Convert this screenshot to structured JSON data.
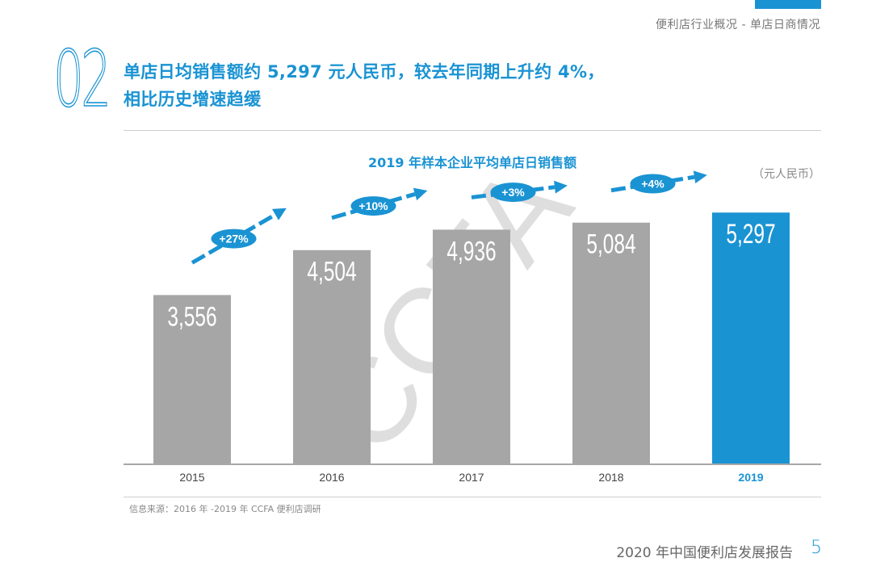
{
  "breadcrumb": "便利店行业概况 - 单店日商情况",
  "section_number": "02",
  "headline": {
    "line1": "单店日均销售额约 5,297 元人民币，较去年同期上升约 4%，",
    "line2": "相比历史增速趋缓"
  },
  "watermark": "CCFA",
  "source": "信息来源：2016 年 -2019 年 CCFA 便利店调研",
  "footer": {
    "title": "2020 年中国便利店发展报告",
    "page": "5"
  },
  "colors": {
    "accent": "#1a93d3",
    "bar_default": "#a6a6a6",
    "bar_highlight": "#1a93d3"
  },
  "chart_data": {
    "type": "bar",
    "title": "2019 年样本企业平均单店日销售额",
    "unit": "（元人民币）",
    "categories": [
      "2015",
      "2016",
      "2017",
      "2018",
      "2019"
    ],
    "values": [
      3556,
      4504,
      4936,
      5084,
      5297
    ],
    "value_labels": [
      "3,556",
      "4,504",
      "4,936",
      "5,084",
      "5,297"
    ],
    "highlight": "2019",
    "ylim": [
      0,
      6000
    ],
    "growth": [
      {
        "from": "2015",
        "to": "2016",
        "label": "+27%"
      },
      {
        "from": "2016",
        "to": "2017",
        "label": "+10%"
      },
      {
        "from": "2017",
        "to": "2018",
        "label": "+3%"
      },
      {
        "from": "2018",
        "to": "2019",
        "label": "+4%"
      }
    ]
  }
}
